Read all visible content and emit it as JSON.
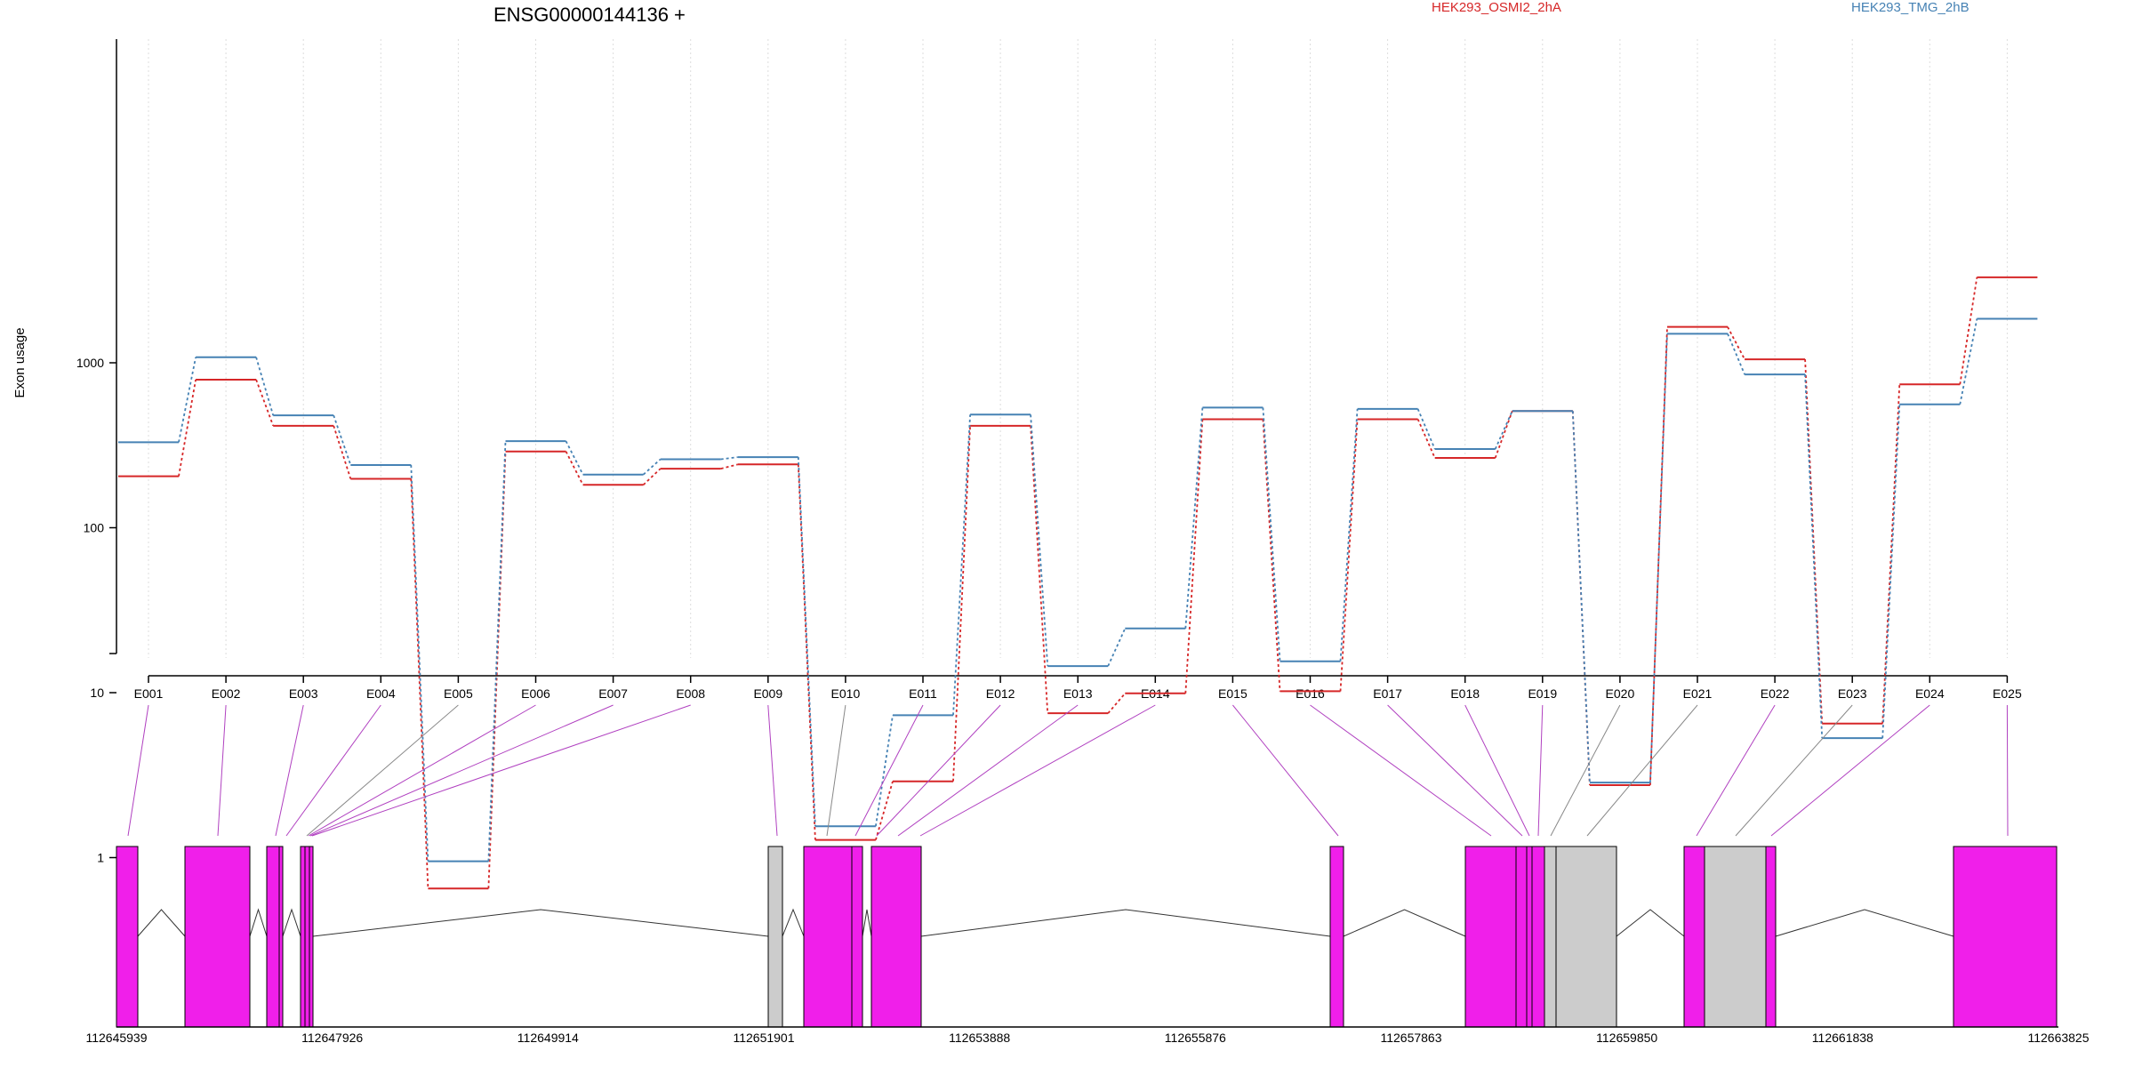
{
  "chart_data": {
    "type": "line",
    "title": "ENSG00000144136 +",
    "ylabel": "Exon usage",
    "xlabel": "",
    "y_scale": "log",
    "y_ticks": [
      1,
      10,
      100,
      1000
    ],
    "grid": "vertical dotted lines at each exon",
    "legend_placement": "top",
    "categories": [
      "E001",
      "E002",
      "E003",
      "E004",
      "E005",
      "E006",
      "E007",
      "E008",
      "E009",
      "E010",
      "E011",
      "E012",
      "E013",
      "E014",
      "E015",
      "E016",
      "E017",
      "E018",
      "E019",
      "E020",
      "E021",
      "E022",
      "E023",
      "E024",
      "E025"
    ],
    "series": [
      {
        "name": "HEK293_OSMI2_2hA",
        "color": "#d62728",
        "values": [
          205,
          790,
          415,
          198,
          0.65,
          290,
          182,
          228,
          242,
          1.28,
          2.9,
          415,
          7.5,
          9.9,
          455,
          10.2,
          455,
          265,
          510,
          2.75,
          1650,
          1050,
          6.5,
          740,
          3300
        ]
      },
      {
        "name": "HEK293_TMG_2hB",
        "color": "#4682b4",
        "values": [
          330,
          1080,
          480,
          240,
          0.95,
          335,
          210,
          260,
          268,
          1.55,
          7.3,
          485,
          14.5,
          24.5,
          535,
          15.5,
          525,
          300,
          510,
          2.85,
          1500,
          850,
          5.3,
          560,
          1850
        ]
      }
    ],
    "gene_model": {
      "coordinate_labels": [
        "112645939",
        "112647926",
        "112649914",
        "112651901",
        "112653888",
        "112655876",
        "112657863",
        "112659850",
        "112661838",
        "112663825"
      ],
      "exon_colors": {
        "counted": "#f01fea",
        "not_counted": "#cccccc"
      }
    }
  }
}
